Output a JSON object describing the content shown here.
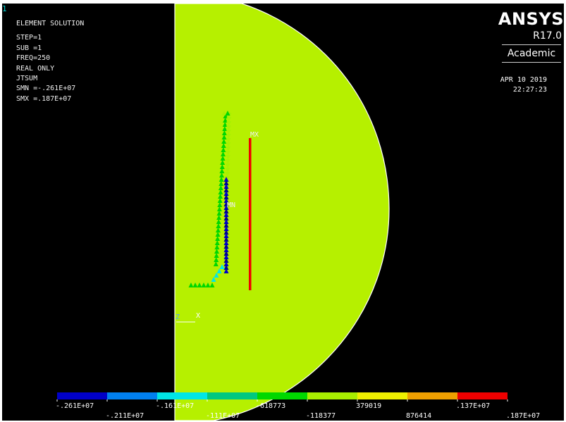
{
  "window": {
    "number": "1"
  },
  "info": {
    "title": "ELEMENT SOLUTION",
    "lines": [
      "STEP=1",
      "SUB =1",
      "FREQ=250",
      "REAL ONLY",
      "JTSUM",
      "SMN =-.261E+07",
      "SMX =.187E+07"
    ]
  },
  "branding": {
    "logo": "ANSYS",
    "version": "R17.0",
    "edition": "Academic",
    "date": "APR 10 2019",
    "time": "22:27:23"
  },
  "markers": {
    "max": "MX",
    "min": "MN"
  },
  "triad": {
    "z": "Z",
    "x": "X"
  },
  "legend": {
    "colors": [
      "#0000c8",
      "#0080f0",
      "#00e6e6",
      "#00c880",
      "#00d800",
      "#a8f000",
      "#f0f000",
      "#f0a000",
      "#f00000"
    ],
    "labels_top": [
      ".261E+07",
      ".161E+07",
      "618773",
      "379019",
      ".137E+07"
    ],
    "labels_bottom": [
      ".211E+07",
      "111E+07",
      "118377",
      "876414",
      ".187E+07"
    ],
    "labels_top_signs": [
      "-",
      "-",
      "-",
      "",
      ""
    ],
    "labels_bottom_signs": [
      "-",
      "-",
      "-",
      "",
      ""
    ]
  },
  "contour": {
    "min": -2610000,
    "max": 1870000
  }
}
